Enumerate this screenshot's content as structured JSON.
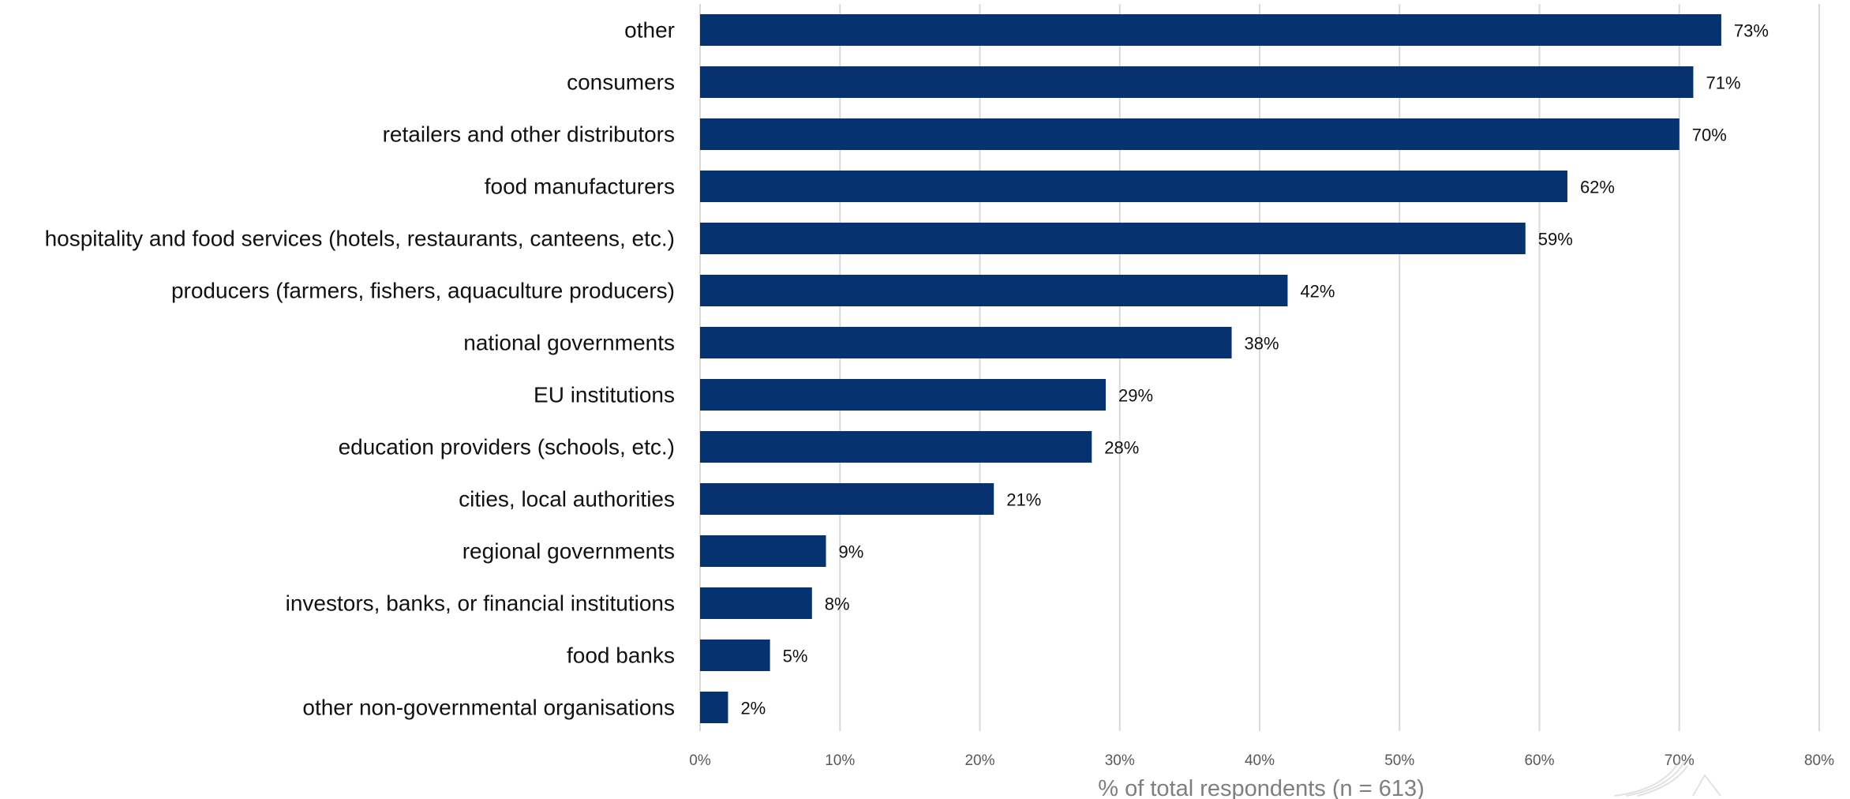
{
  "chart_data": {
    "type": "bar",
    "orientation": "horizontal",
    "categories": [
      "other",
      "consumers",
      "retailers and other distributors",
      "food manufacturers",
      "hospitality and food services (hotels, restaurants, canteens, etc.)",
      "producers (farmers, fishers, aquaculture producers)",
      "national governments",
      "EU institutions",
      "education providers (schools, etc.)",
      "cities, local authorities",
      "regional governments",
      "investors, banks, or financial institutions",
      "food banks",
      "other non-governmental organisations"
    ],
    "values": [
      73,
      71,
      70,
      62,
      59,
      42,
      38,
      29,
      28,
      21,
      9,
      8,
      5,
      2
    ],
    "data_labels": [
      "73%",
      "71%",
      "70%",
      "62%",
      "59%",
      "42%",
      "38%",
      "29%",
      "28%",
      "21%",
      "9%",
      "8%",
      "5%",
      "2%"
    ],
    "xlabel": "% of total respondents (n = 613)",
    "xlim": [
      0,
      80
    ],
    "x_ticks": [
      0,
      10,
      20,
      30,
      40,
      50,
      60,
      70,
      80
    ],
    "x_tick_labels": [
      "0%",
      "10%",
      "20%",
      "30%",
      "40%",
      "50%",
      "60%",
      "70%",
      "80%"
    ],
    "grid": true,
    "legend": "none",
    "bar_color": "#063370",
    "grid_color": "#d9d9d9"
  }
}
